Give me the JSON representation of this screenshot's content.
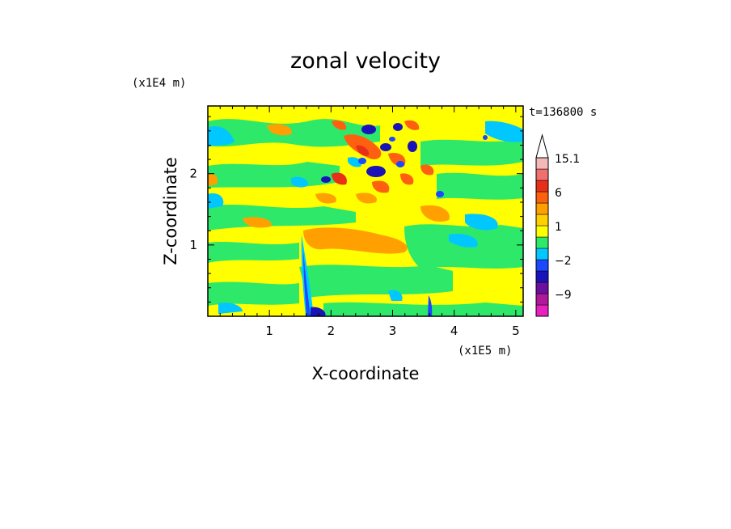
{
  "chart_data": {
    "type": "heatmap",
    "title": "zonal velocity",
    "xlabel": "X-coordinate",
    "ylabel": "Z-coordinate",
    "x_unit": "(x1E5 m)",
    "y_unit": "(x1E4 m)",
    "time_label": "t=136800 s",
    "xlim": [
      0,
      5.12
    ],
    "ylim": [
      0,
      2.95
    ],
    "x_ticks": [
      1,
      2,
      3,
      4,
      5
    ],
    "y_ticks": [
      1,
      2
    ],
    "colorbar": {
      "levels": [
        -12,
        -9,
        -6,
        -3,
        -2,
        -1,
        0,
        1,
        2,
        3,
        6,
        9,
        12,
        15.1
      ],
      "labels": [
        "15.1",
        "6",
        "1",
        "−2",
        "−9"
      ],
      "label_values": [
        15.1,
        6,
        1,
        -2,
        -9
      ],
      "colors": [
        "#e820c0",
        "#b0189c",
        "#6a0fa0",
        "#1a14b8",
        "#1c48ff",
        "#00c8ff",
        "#2ee86a",
        "#ffff00",
        "#ffd000",
        "#ffa000",
        "#ff6010",
        "#e83018",
        "#f07070",
        "#f4b8b8"
      ],
      "extend": "max"
    }
  }
}
